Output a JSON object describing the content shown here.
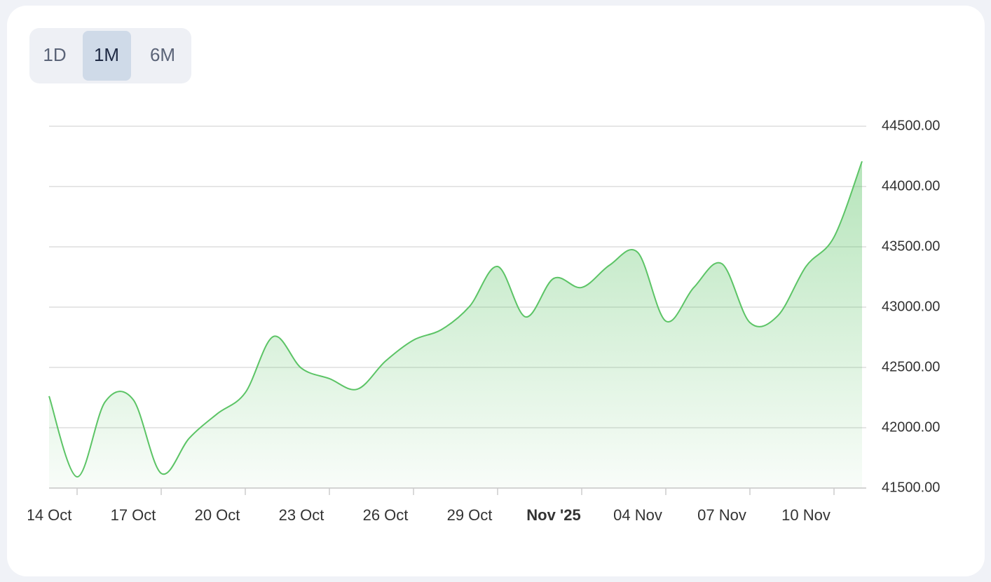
{
  "tabs": {
    "options": [
      "1D",
      "1M",
      "6M"
    ],
    "active": 1
  },
  "chart_data": {
    "type": "area",
    "color": "#5cc466",
    "grid": true,
    "x": [
      "2025-10-14",
      "2025-10-15",
      "2025-10-16",
      "2025-10-17",
      "2025-10-18",
      "2025-10-19",
      "2025-10-20",
      "2025-10-21",
      "2025-10-22",
      "2025-10-23",
      "2025-10-24",
      "2025-10-25",
      "2025-10-26",
      "2025-10-27",
      "2025-10-28",
      "2025-10-29",
      "2025-10-30",
      "2025-10-31",
      "2025-11-01",
      "2025-11-02",
      "2025-11-03",
      "2025-11-04",
      "2025-11-05",
      "2025-11-06",
      "2025-11-07",
      "2025-11-08",
      "2025-11-09",
      "2025-11-10",
      "2025-11-11",
      "2025-11-12"
    ],
    "values": [
      42262,
      41593,
      42215,
      42233,
      41622,
      41913,
      42116,
      42291,
      42756,
      42494,
      42407,
      42320,
      42552,
      42727,
      42814,
      43006,
      43337,
      42919,
      43238,
      43163,
      43349,
      43453,
      42884,
      43163,
      43360,
      42872,
      42930,
      43337,
      43581,
      44209
    ],
    "xlim": [
      "2025-10-14",
      "2025-11-12"
    ],
    "xticks": [
      {
        "value": "2025-10-14",
        "label": "14 Oct"
      },
      {
        "value": "2025-10-17",
        "label": "17 Oct"
      },
      {
        "value": "2025-10-20",
        "label": "20 Oct"
      },
      {
        "value": "2025-10-23",
        "label": "23 Oct"
      },
      {
        "value": "2025-10-26",
        "label": "26 Oct"
      },
      {
        "value": "2025-10-29",
        "label": "29 Oct"
      },
      {
        "value": "2025-11-01",
        "label": "Nov '25"
      },
      {
        "value": "2025-11-04",
        "label": "04 Nov"
      },
      {
        "value": "2025-11-07",
        "label": "07 Nov"
      },
      {
        "value": "2025-11-10",
        "label": "10 Nov"
      }
    ],
    "bold_xticks": [
      6
    ],
    "ylim": [
      41500,
      44500
    ],
    "yticks": [
      {
        "value": 41500,
        "label": "41500.00"
      },
      {
        "value": 42000,
        "label": "42000.00"
      },
      {
        "value": 42500,
        "label": "42500.00"
      },
      {
        "value": 43000,
        "label": "43000.00"
      },
      {
        "value": 43500,
        "label": "43500.00"
      },
      {
        "value": 44000,
        "label": "44000.00"
      },
      {
        "value": 44500,
        "label": "44500.00"
      }
    ]
  }
}
